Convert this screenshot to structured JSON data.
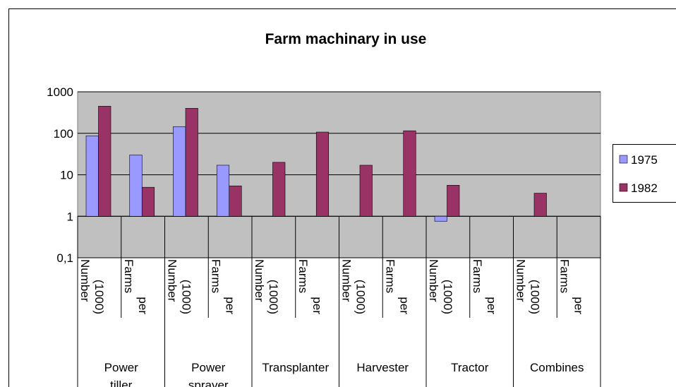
{
  "chart_data": {
    "type": "bar",
    "title": "Farm machinary in use",
    "groups": [
      "Power tiller",
      "Power sprayer",
      "Transplanter",
      "Harvester",
      "Tractor",
      "Combines"
    ],
    "categories": [
      "Number (1000)",
      "Farms per",
      "Number (1000)",
      "Farms per",
      "Number (1000)",
      "Farms per",
      "Number (1000)",
      "Farms per",
      "Number (1000)",
      "Farms per",
      "Number (1000)",
      "Farms per"
    ],
    "series": [
      {
        "name": "1975",
        "color": "#9999ff",
        "values": [
          87,
          30,
          145,
          17,
          null,
          null,
          null,
          null,
          0.76,
          null,
          null,
          null
        ]
      },
      {
        "name": "1982",
        "color": "#993366",
        "values": [
          450,
          5,
          400,
          5.4,
          20,
          107,
          17,
          115,
          5.6,
          null,
          3.6,
          null
        ]
      }
    ],
    "log_scale": true,
    "x_axis_crosses": 1,
    "ylim": [
      0.1,
      1000
    ],
    "yticks": [
      {
        "value": 0.1,
        "label": "0,1"
      },
      1,
      10,
      100,
      1000
    ],
    "grid": true,
    "legend": "right"
  }
}
